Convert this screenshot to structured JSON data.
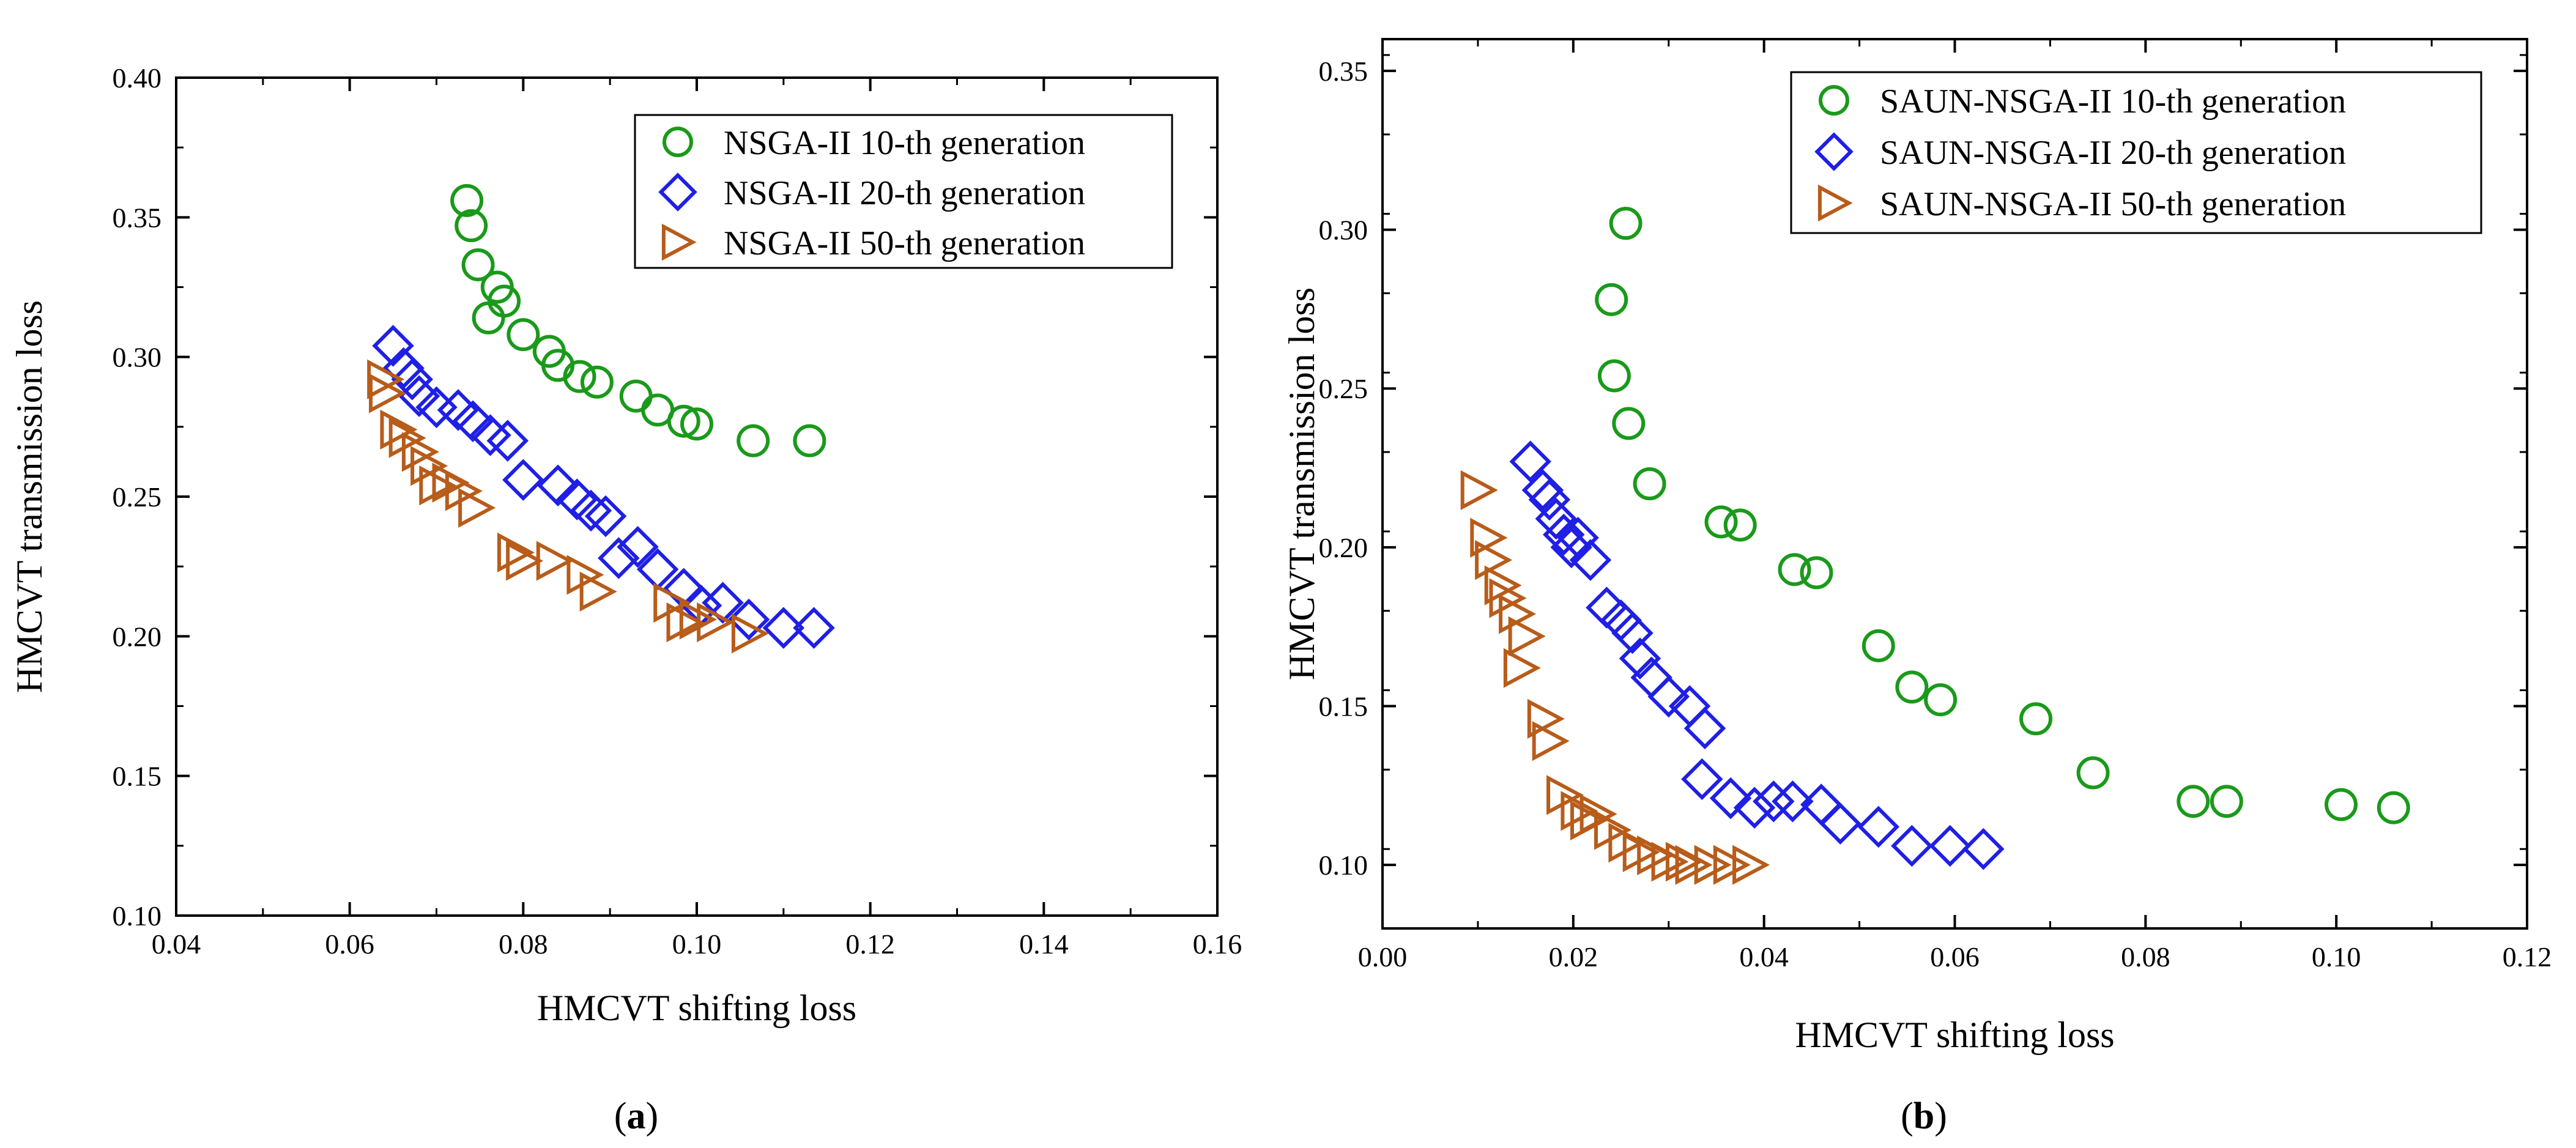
{
  "chart_data": [
    {
      "type": "scatter",
      "panel_label": "a",
      "xlabel": "HMCVT shifting loss",
      "ylabel": "HMCVT transmission loss",
      "xlim": [
        0.04,
        0.16
      ],
      "ylim": [
        0.1,
        0.4
      ],
      "xticks": [
        "0.04",
        "0.06",
        "0.08",
        "0.10",
        "0.12",
        "0.14",
        "0.16"
      ],
      "yticks": [
        "0.10",
        "0.15",
        "0.20",
        "0.25",
        "0.30",
        "0.35",
        "0.40"
      ],
      "legend_position": "top-right",
      "series": [
        {
          "name": "NSGA-II 10-th generation",
          "marker": "circle",
          "color": "#1a9a1a",
          "x": [
            0.0735,
            0.074,
            0.0748,
            0.077,
            0.0778,
            0.076,
            0.08,
            0.083,
            0.084,
            0.0865,
            0.0885,
            0.093,
            0.0955,
            0.0985,
            0.1,
            0.1065,
            0.113
          ],
          "y": [
            0.356,
            0.347,
            0.333,
            0.325,
            0.32,
            0.314,
            0.308,
            0.302,
            0.297,
            0.293,
            0.291,
            0.286,
            0.281,
            0.277,
            0.276,
            0.27,
            0.27
          ]
        },
        {
          "name": "NSGA-II 20-th generation",
          "marker": "diamond",
          "color": "#1f1fe6",
          "x": [
            0.065,
            0.0662,
            0.0672,
            0.068,
            0.07,
            0.0725,
            0.0742,
            0.0762,
            0.0782,
            0.08,
            0.084,
            0.0862,
            0.0878,
            0.0895,
            0.091,
            0.0932,
            0.0955,
            0.0985,
            0.1005,
            0.103,
            0.106,
            0.11,
            0.1135
          ],
          "y": [
            0.304,
            0.296,
            0.292,
            0.286,
            0.282,
            0.281,
            0.277,
            0.272,
            0.27,
            0.256,
            0.254,
            0.249,
            0.245,
            0.243,
            0.228,
            0.232,
            0.224,
            0.217,
            0.211,
            0.212,
            0.206,
            0.203,
            0.203
          ]
        },
        {
          "name": "NSGA-II 50-th generation",
          "marker": "triangle-right",
          "color": "#b85c1a",
          "x": [
            0.064,
            0.0642,
            0.0655,
            0.0665,
            0.068,
            0.069,
            0.07,
            0.0715,
            0.073,
            0.0745,
            0.079,
            0.08,
            0.0835,
            0.087,
            0.0885,
            0.097,
            0.0985,
            0.1,
            0.102,
            0.106
          ],
          "y": [
            0.292,
            0.287,
            0.274,
            0.271,
            0.266,
            0.261,
            0.254,
            0.255,
            0.252,
            0.246,
            0.23,
            0.227,
            0.227,
            0.222,
            0.216,
            0.212,
            0.205,
            0.206,
            0.205,
            0.201
          ]
        }
      ]
    },
    {
      "type": "scatter",
      "panel_label": "b",
      "xlabel": "HMCVT shifting loss",
      "ylabel": "HMCVT transmission loss",
      "xlim": [
        0.0,
        0.12
      ],
      "ylim": [
        0.08,
        0.36
      ],
      "xticks": [
        "0.00",
        "0.02",
        "0.04",
        "0.06",
        "0.08",
        "0.10",
        "0.12"
      ],
      "yticks": [
        "0.10",
        "0.15",
        "0.20",
        "0.25",
        "0.30",
        "0.35"
      ],
      "legend_position": "top-right",
      "series": [
        {
          "name": "SAUN-NSGA-II 10-th generation",
          "marker": "circle",
          "color": "#1a9a1a",
          "x": [
            0.0255,
            0.024,
            0.0243,
            0.0258,
            0.028,
            0.0355,
            0.0375,
            0.0432,
            0.0455,
            0.052,
            0.0555,
            0.0585,
            0.0685,
            0.0745,
            0.085,
            0.0885,
            0.1005,
            0.106
          ],
          "y": [
            0.302,
            0.278,
            0.254,
            0.239,
            0.22,
            0.208,
            0.207,
            0.193,
            0.192,
            0.169,
            0.156,
            0.152,
            0.146,
            0.129,
            0.12,
            0.12,
            0.119,
            0.118
          ]
        },
        {
          "name": "SAUN-NSGA-II 20-th generation",
          "marker": "diamond",
          "color": "#1f1fe6",
          "x": [
            0.0155,
            0.0168,
            0.0175,
            0.0182,
            0.019,
            0.0198,
            0.0205,
            0.0218,
            0.0235,
            0.025,
            0.0262,
            0.027,
            0.0282,
            0.03,
            0.0322,
            0.0338,
            0.0335,
            0.0365,
            0.039,
            0.041,
            0.043,
            0.046,
            0.048,
            0.052,
            0.0555,
            0.0595,
            0.063
          ],
          "y": [
            0.227,
            0.218,
            0.215,
            0.209,
            0.204,
            0.2,
            0.203,
            0.196,
            0.181,
            0.177,
            0.173,
            0.165,
            0.159,
            0.153,
            0.15,
            0.143,
            0.127,
            0.121,
            0.118,
            0.12,
            0.12,
            0.119,
            0.113,
            0.112,
            0.106,
            0.106,
            0.105
          ]
        },
        {
          "name": "SAUN-NSGA-II 50-th generation",
          "marker": "triangle-right",
          "color": "#b85c1a",
          "x": [
            0.01,
            0.011,
            0.0115,
            0.0125,
            0.013,
            0.014,
            0.015,
            0.0145,
            0.017,
            0.0175,
            0.019,
            0.0205,
            0.0215,
            0.0225,
            0.024,
            0.0255,
            0.027,
            0.0285,
            0.03,
            0.0315,
            0.0325,
            0.0345,
            0.0365,
            0.0385
          ],
          "y": [
            0.218,
            0.203,
            0.196,
            0.188,
            0.184,
            0.179,
            0.172,
            0.162,
            0.146,
            0.139,
            0.122,
            0.117,
            0.114,
            0.116,
            0.111,
            0.107,
            0.104,
            0.103,
            0.101,
            0.101,
            0.1,
            0.1,
            0.1,
            0.1
          ]
        }
      ]
    }
  ]
}
